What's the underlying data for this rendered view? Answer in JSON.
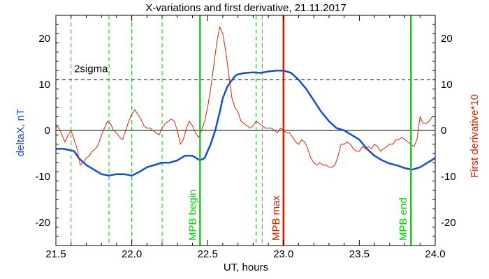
{
  "chart_data": {
    "type": "line",
    "title": "X-variations and first derivative, 21.11.2017",
    "xlabel": "UT, hours",
    "ylabel_left": "deltaX, nT",
    "ylabel_right": "First derivative*10",
    "xlim": [
      21.5,
      24.0
    ],
    "ylim": [
      -25,
      25
    ],
    "xticks": [
      "21.5",
      "22.0",
      "22.5",
      "23.0",
      "23.5",
      "24.0"
    ],
    "xtick_values": [
      21.5,
      22.0,
      22.5,
      23.0,
      23.5,
      24.0
    ],
    "yticks": [
      "-20",
      "-10",
      "0",
      "10",
      "20"
    ],
    "ytick_values": [
      -20,
      -10,
      0,
      10,
      20
    ],
    "grid": false,
    "sigma_line": {
      "y": 11,
      "label": "2sigma"
    },
    "dashed_markers": [
      21.6,
      21.85,
      22.0,
      22.2,
      22.82,
      22.86
    ],
    "events": [
      {
        "x": 22.45,
        "label": "MPB begin",
        "color": "#00dd00"
      },
      {
        "x": 23.0,
        "label": "MPB max",
        "color": "#cc2200"
      },
      {
        "x": 23.84,
        "label": "MPB end",
        "color": "#00dd00"
      }
    ],
    "series": [
      {
        "color": "#1050d0",
        "x": [
          21.5,
          21.55,
          21.62,
          21.65,
          21.7,
          21.75,
          21.8,
          21.85,
          21.9,
          21.95,
          22.0,
          22.05,
          22.1,
          22.15,
          22.2,
          22.25,
          22.3,
          22.35,
          22.4,
          22.45,
          22.48,
          22.52,
          22.55,
          22.58,
          22.6,
          22.63,
          22.65,
          22.68,
          22.7,
          22.75,
          22.8,
          22.85,
          22.9,
          22.95,
          23.0,
          23.05,
          23.1,
          23.15,
          23.2,
          23.25,
          23.3,
          23.35,
          23.4,
          23.45,
          23.5,
          23.55,
          23.6,
          23.65,
          23.7,
          23.75,
          23.8,
          23.85,
          23.9,
          23.95,
          24.0
        ],
        "values": [
          -4,
          -4,
          -4.5,
          -6,
          -7.5,
          -8.5,
          -9.5,
          -9.8,
          -9.5,
          -9.5,
          -9.8,
          -9,
          -8,
          -7.5,
          -7,
          -7,
          -6.5,
          -5.5,
          -5.5,
          -6.5,
          -6,
          -3,
          0,
          4,
          7,
          9.5,
          10.5,
          11.8,
          12.2,
          12.5,
          12.6,
          12.5,
          12.8,
          13,
          13,
          12.5,
          11,
          9,
          6.5,
          4,
          2,
          0.5,
          0,
          -1,
          -2,
          -4,
          -5.5,
          -6.5,
          -7.2,
          -7.6,
          -8.2,
          -8.5,
          -8,
          -7,
          -6
        ]
      },
      {
        "color": "#dd2200",
        "x": [
          21.5,
          21.52,
          21.54,
          21.56,
          21.58,
          21.6,
          21.62,
          21.64,
          21.66,
          21.68,
          21.7,
          21.72,
          21.74,
          21.76,
          21.78,
          21.8,
          21.82,
          21.84,
          21.86,
          21.88,
          21.9,
          21.92,
          21.94,
          21.96,
          21.98,
          22.0,
          22.02,
          22.04,
          22.06,
          22.08,
          22.1,
          22.12,
          22.14,
          22.16,
          22.18,
          22.2,
          22.22,
          22.24,
          22.26,
          22.28,
          22.3,
          22.32,
          22.34,
          22.36,
          22.38,
          22.4,
          22.42,
          22.44,
          22.46,
          22.48,
          22.5,
          22.52,
          22.54,
          22.56,
          22.58,
          22.6,
          22.62,
          22.64,
          22.66,
          22.68,
          22.7,
          22.72,
          22.74,
          22.76,
          22.78,
          22.8,
          22.82,
          22.84,
          22.86,
          22.88,
          22.9,
          22.92,
          22.94,
          22.96,
          22.98,
          23.0,
          23.02,
          23.04,
          23.06,
          23.08,
          23.1,
          23.12,
          23.14,
          23.16,
          23.18,
          23.2,
          23.22,
          23.24,
          23.26,
          23.28,
          23.3,
          23.32,
          23.34,
          23.36,
          23.38,
          23.4,
          23.42,
          23.44,
          23.46,
          23.48,
          23.5,
          23.52,
          23.54,
          23.56,
          23.58,
          23.6,
          23.62,
          23.64,
          23.66,
          23.68,
          23.7,
          23.72,
          23.74,
          23.76,
          23.78,
          23.8,
          23.82,
          23.84,
          23.86,
          23.88,
          23.9,
          23.92,
          23.94,
          23.96,
          23.98,
          24.0
        ],
        "values": [
          1,
          0.5,
          -1,
          -2.5,
          -1,
          0,
          -2,
          -4,
          -7.5,
          -7,
          -6,
          -5.5,
          -4.5,
          -4,
          -3,
          -1,
          0.5,
          2,
          1.5,
          0,
          -0.5,
          -1.5,
          -2,
          0,
          2,
          3.5,
          4.5,
          3.5,
          2.5,
          1,
          0.5,
          0.5,
          0,
          -0.5,
          -1,
          0.5,
          1.5,
          2,
          2.5,
          2,
          0,
          -3,
          -2,
          0.5,
          2,
          1,
          -0.5,
          -1.5,
          0,
          2,
          5,
          9,
          14,
          19,
          22.5,
          21,
          17,
          12,
          7,
          5,
          4,
          2,
          1.5,
          1,
          0.5,
          1,
          2,
          1.5,
          1,
          0.5,
          0.5,
          0.5,
          0,
          -0.5,
          0.5,
          0,
          -0.5,
          -0.5,
          -1.5,
          -2.5,
          -3,
          -2,
          -2.5,
          -4,
          -6,
          -7,
          -7.5,
          -7,
          -7.5,
          -7.5,
          -8,
          -8,
          -7.5,
          -5.5,
          -3,
          -3,
          -2.5,
          -3,
          -4,
          -4.5,
          -4.5,
          -3.5,
          -4,
          -3.5,
          -4,
          -3,
          -3.5,
          -4.5,
          -4,
          -3.5,
          -3,
          -3,
          -2,
          -2,
          -1.5,
          -2,
          -2.5,
          -3,
          -3.5,
          -2,
          3,
          1.5,
          1.5,
          2,
          3,
          3
        ]
      }
    ]
  }
}
